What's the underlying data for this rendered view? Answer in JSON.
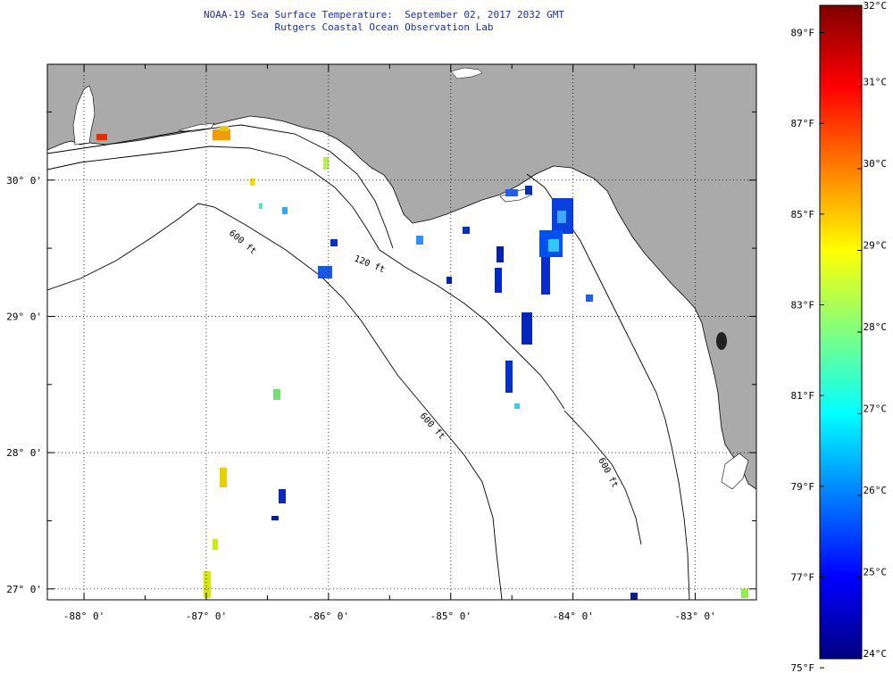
{
  "title": {
    "line1": "NOAA-19 Sea Surface Temperature:  September 02, 2017 2032 GMT",
    "line2": "Rutgers Coastal Ocean Observation Lab"
  },
  "map": {
    "lat_labels": [
      "30° 0'",
      "29° 0'",
      "28° 0'",
      "27° 0'"
    ],
    "lat_values": [
      30,
      29,
      28,
      27
    ],
    "lon_labels": [
      "-88° 0'",
      "-87° 0'",
      "-86° 0'",
      "-85° 0'",
      "-84° 0'",
      "-83° 0'"
    ],
    "lon_values": [
      -88,
      -87,
      -86,
      -85,
      -84,
      -83
    ],
    "lon_range": [
      -88.3,
      -82.5
    ],
    "lat_range": [
      26.92,
      30.85
    ],
    "land_color": "#aaaaaa",
    "ocean_color": "#ffffff",
    "isobaths": [
      {
        "label": "120 ft"
      },
      {
        "label": "600 ft"
      },
      {
        "label": "600 ft"
      },
      {
        "label": "600 ft"
      }
    ]
  },
  "colorbar": {
    "celsius_labels": [
      "32°C",
      "31°C",
      "30°C",
      "29°C",
      "28°C",
      "27°C",
      "26°C",
      "25°C",
      "24°C"
    ],
    "celsius_values": [
      32,
      31,
      30,
      29,
      28,
      27,
      26,
      25,
      24
    ],
    "fahrenheit_labels": [
      "89°F",
      "87°F",
      "85°F",
      "83°F",
      "81°F",
      "79°F",
      "77°F",
      "75°F"
    ],
    "fahrenheit_values": [
      89,
      87,
      85,
      83,
      81,
      79,
      77,
      75
    ],
    "range_c": [
      24,
      32
    ],
    "colors": [
      "#00007f",
      "#0000ff",
      "#007fff",
      "#00ffff",
      "#7fff7f",
      "#ffff00",
      "#ff7f00",
      "#ff0000",
      "#7f0000"
    ]
  }
}
